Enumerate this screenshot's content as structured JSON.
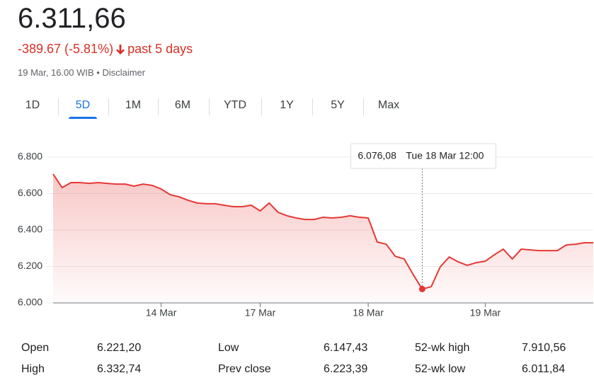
{
  "header": {
    "price": "6.311,66",
    "change": "-389.67 (-5.81%)",
    "period": "past 5 days",
    "timestamp": "19 Mar, 16.00 WIB • Disclaimer"
  },
  "tabs": [
    "1D",
    "5D",
    "1M",
    "6M",
    "YTD",
    "1Y",
    "5Y",
    "Max"
  ],
  "selected_tab": "5D",
  "chart_data": {
    "type": "line",
    "color": "#e53935",
    "grid": true,
    "categories": [
      null,
      null,
      null,
      null,
      null,
      null,
      null,
      null,
      null,
      null,
      null,
      null,
      "14 Mar",
      null,
      null,
      null,
      null,
      null,
      null,
      null,
      null,
      null,
      null,
      "17 Mar",
      null,
      null,
      null,
      null,
      null,
      null,
      null,
      null,
      null,
      null,
      null,
      "18 Mar",
      null,
      null,
      null,
      null,
      null,
      null,
      null,
      null,
      null,
      null,
      null,
      null,
      "19 Mar",
      null,
      null,
      null,
      null,
      null,
      null,
      null,
      null,
      null,
      null,
      null,
      null
    ],
    "values": [
      6707,
      6633,
      6660,
      6660,
      6656,
      6660,
      6656,
      6652,
      6652,
      6641,
      6652,
      6645,
      6625,
      6594,
      6582,
      6563,
      6548,
      6544,
      6544,
      6536,
      6528,
      6528,
      6536,
      6505,
      6548,
      6497,
      6478,
      6466,
      6458,
      6458,
      6470,
      6466,
      6470,
      6478,
      6470,
      6466,
      6334,
      6322,
      6256,
      6241,
      6155,
      6076.08,
      6089,
      6198,
      6252,
      6225,
      6206,
      6221,
      6229,
      6264,
      6295,
      6241,
      6295,
      6291,
      6287,
      6287,
      6287,
      6318,
      6322,
      6330,
      6330
    ],
    "value_labels": [
      null,
      null,
      null,
      null,
      null,
      null,
      null,
      null,
      null,
      null,
      null,
      null,
      null,
      null,
      null,
      null,
      null,
      null,
      null,
      null,
      null,
      null,
      null,
      null,
      null,
      null,
      null,
      null,
      null,
      null,
      null,
      null,
      null,
      null,
      null,
      null,
      null,
      null,
      null,
      null,
      null,
      "6.076,08",
      null,
      null,
      null,
      null,
      null,
      null,
      null,
      null,
      null,
      null,
      null,
      null,
      null,
      null,
      null,
      null,
      null,
      null,
      null
    ],
    "tooltip_time": "Tue 18 Mar 12:00",
    "ylim": [
      6000,
      6800
    ],
    "yticks": [
      {
        "value": 6000,
        "label": "6.000"
      },
      {
        "value": 6200,
        "label": "6.200"
      },
      {
        "value": 6400,
        "label": "6.400"
      },
      {
        "value": 6600,
        "label": "6.600"
      },
      {
        "value": 6800,
        "label": "6.800"
      }
    ]
  },
  "stats": {
    "rows": [
      [
        "Open",
        "6.221,20",
        "Low",
        "6.147,43",
        "52-wk high",
        "7.910,56"
      ],
      [
        "High",
        "6.332,74",
        "Prev close",
        "6.223,39",
        "52-wk low",
        "6.011,84"
      ]
    ]
  }
}
